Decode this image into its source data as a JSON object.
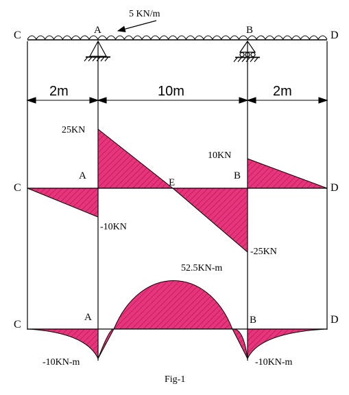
{
  "load_label": "5 KN/m",
  "points": {
    "c": "C",
    "a": "A",
    "b": "B",
    "d": "D",
    "e": "E"
  },
  "spans": {
    "left": "2m",
    "middle": "10m",
    "right": "2m"
  },
  "shear": {
    "a_right": "25KN",
    "a_left": "-10KN",
    "b_right": "10KN",
    "b_left": "-25KN"
  },
  "moment": {
    "max": "52.5KN-m",
    "a": "-10KN-m",
    "b": "-10KN-m"
  },
  "caption": "Fig-1",
  "colors": {
    "fill": "#e8347a",
    "hatch": "#a0134e",
    "line": "#000000"
  }
}
